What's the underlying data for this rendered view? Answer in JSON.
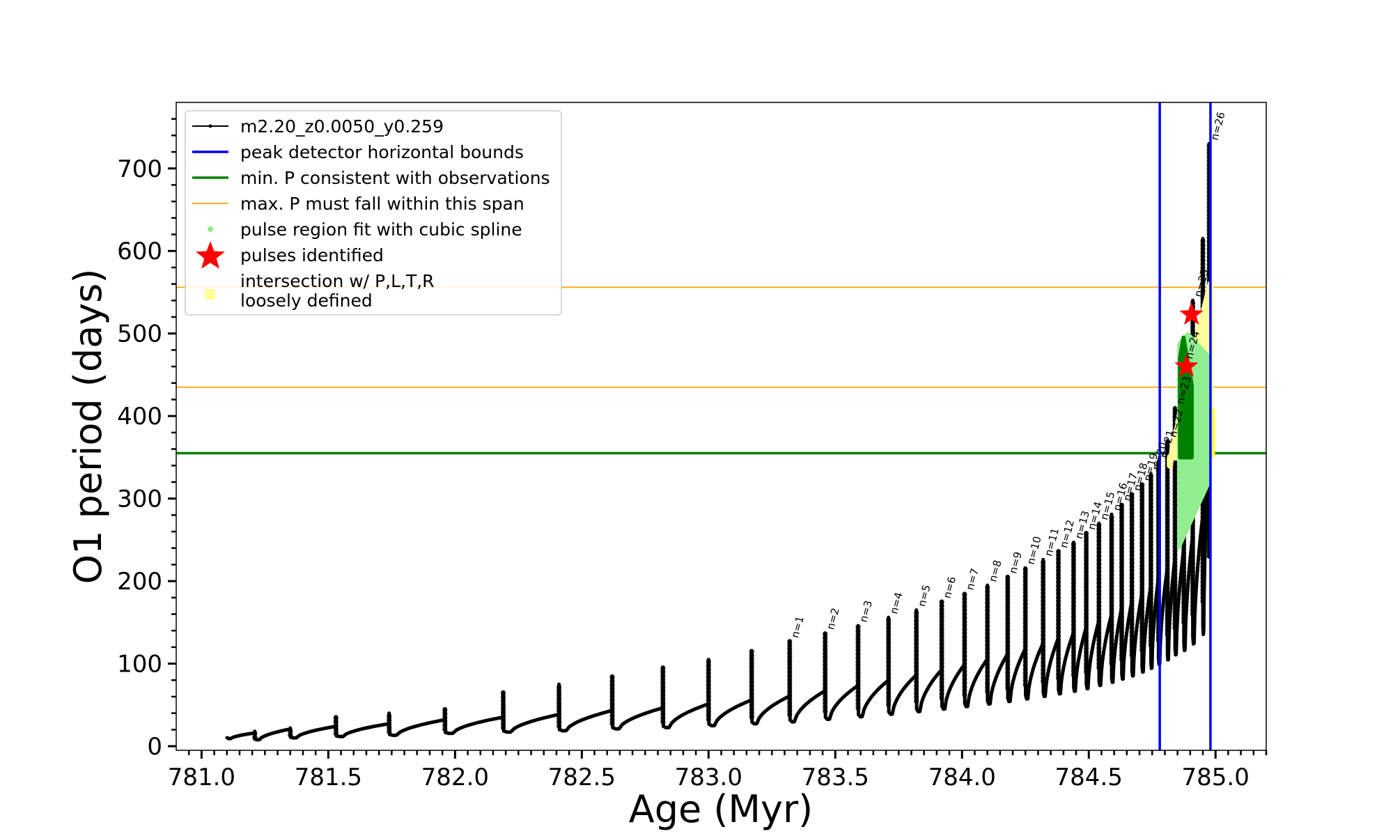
{
  "chart_data": {
    "type": "line",
    "title": "",
    "xlabel": "Age (Myr)",
    "ylabel": "O1 period (days)",
    "xlim": [
      780.9,
      785.2
    ],
    "ylim": [
      -5,
      780
    ],
    "xticks": [
      "781.0",
      "781.5",
      "782.0",
      "782.5",
      "783.0",
      "783.5",
      "784.0",
      "784.5",
      "785.0"
    ],
    "yticks": [
      "0",
      "100",
      "200",
      "300",
      "400",
      "500",
      "600",
      "700"
    ],
    "grid": false,
    "legend_position": "top-left",
    "legend": [
      {
        "label": "m2.20_z0.0050_y0.259",
        "kind": "line-dots",
        "color": "#000000"
      },
      {
        "label": "peak detector horizontal bounds",
        "kind": "line",
        "color": "#0000ff"
      },
      {
        "label": "min. P consistent with observations",
        "kind": "line",
        "color": "#008000"
      },
      {
        "label": "max. P must fall within this span",
        "kind": "thin-line",
        "color": "#ffa500"
      },
      {
        "label": "pulse region fit with cubic spline",
        "kind": "dot",
        "color": "#90ee90"
      },
      {
        "label": "pulses identified",
        "kind": "star",
        "color": "#ff0000"
      },
      {
        "label_lines": [
          "intersection w/ P,L,T,R",
          "loosely defined"
        ],
        "kind": "square",
        "color": "#ffff99"
      }
    ],
    "vertical_lines": [
      784.78,
      784.98
    ],
    "min_period_line": 355,
    "max_period_span": [
      435,
      556
    ],
    "series": [
      {
        "name": "m2.20_z0.0050_y0.259",
        "color": "#000000",
        "pulses": [
          {
            "age": 781.1,
            "start": 12,
            "peak": 12
          },
          {
            "age": 781.21,
            "start": 10,
            "peak": 18
          },
          {
            "age": 781.35,
            "start": 13,
            "peak": 22
          },
          {
            "age": 781.53,
            "start": 15,
            "peak": 35
          },
          {
            "age": 781.74,
            "start": 17,
            "peak": 40
          },
          {
            "age": 781.96,
            "start": 20,
            "peak": 45
          },
          {
            "age": 782.19,
            "start": 22,
            "peak": 65
          },
          {
            "age": 782.41,
            "start": 24,
            "peak": 75
          },
          {
            "age": 782.62,
            "start": 27,
            "peak": 85
          },
          {
            "age": 782.82,
            "start": 29,
            "peak": 95
          },
          {
            "age": 783.0,
            "start": 32,
            "peak": 105
          },
          {
            "age": 783.17,
            "start": 35,
            "peak": 115
          },
          {
            "age": 783.32,
            "start": 38,
            "peak": 127,
            "label": "n=1"
          },
          {
            "age": 783.46,
            "start": 42,
            "peak": 137,
            "label": "n=2"
          },
          {
            "age": 783.59,
            "start": 46,
            "peak": 146,
            "label": "n=3"
          },
          {
            "age": 783.71,
            "start": 50,
            "peak": 156,
            "label": "n=4"
          },
          {
            "age": 783.82,
            "start": 54,
            "peak": 165,
            "label": "n=5"
          },
          {
            "age": 783.92,
            "start": 58,
            "peak": 175,
            "label": "n=6"
          },
          {
            "age": 784.01,
            "start": 62,
            "peak": 185,
            "label": "n=7"
          },
          {
            "age": 784.1,
            "start": 66,
            "peak": 195,
            "label": "n=8"
          },
          {
            "age": 784.18,
            "start": 70,
            "peak": 205,
            "label": "n=9"
          },
          {
            "age": 784.25,
            "start": 74,
            "peak": 216,
            "label": "n=10"
          },
          {
            "age": 784.32,
            "start": 78,
            "peak": 226,
            "label": "n=11"
          },
          {
            "age": 784.38,
            "start": 82,
            "peak": 236,
            "label": "n=12"
          },
          {
            "age": 784.44,
            "start": 86,
            "peak": 247,
            "label": "n=13"
          },
          {
            "age": 784.49,
            "start": 90,
            "peak": 258,
            "label": "n=14"
          },
          {
            "age": 784.54,
            "start": 95,
            "peak": 270,
            "label": "n=15"
          },
          {
            "age": 784.59,
            "start": 100,
            "peak": 281,
            "label": "n=16"
          },
          {
            "age": 784.63,
            "start": 105,
            "peak": 293,
            "label": "n=17"
          },
          {
            "age": 784.67,
            "start": 110,
            "peak": 305,
            "label": "n=18"
          },
          {
            "age": 784.71,
            "start": 116,
            "peak": 317,
            "label": "n=19"
          },
          {
            "age": 784.745,
            "start": 122,
            "peak": 330,
            "label": "n=20"
          },
          {
            "age": 784.775,
            "start": 128,
            "peak": 345,
            "label": "n=21"
          },
          {
            "age": 784.81,
            "start": 135,
            "peak": 370,
            "label": "n=22"
          },
          {
            "age": 784.84,
            "start": 143,
            "peak": 410,
            "label": "n=23"
          },
          {
            "age": 784.875,
            "start": 150,
            "peak": 465,
            "label": "n=24"
          },
          {
            "age": 784.91,
            "start": 160,
            "peak": 540,
            "label": "n=25"
          },
          {
            "age": 784.95,
            "start": 175,
            "peak": 615
          },
          {
            "age": 784.975,
            "start": 230,
            "peak": 730,
            "label": "n=26"
          }
        ]
      }
    ],
    "pulses_identified": [
      {
        "age": 784.885,
        "period": 460
      },
      {
        "age": 784.905,
        "period": 523
      }
    ],
    "spline_region": {
      "age_range": [
        784.855,
        784.975
      ],
      "period_range": [
        240,
        500
      ]
    },
    "intersection_region": {
      "age_range": [
        784.82,
        784.98
      ],
      "period_range": [
        340,
        560
      ]
    }
  }
}
